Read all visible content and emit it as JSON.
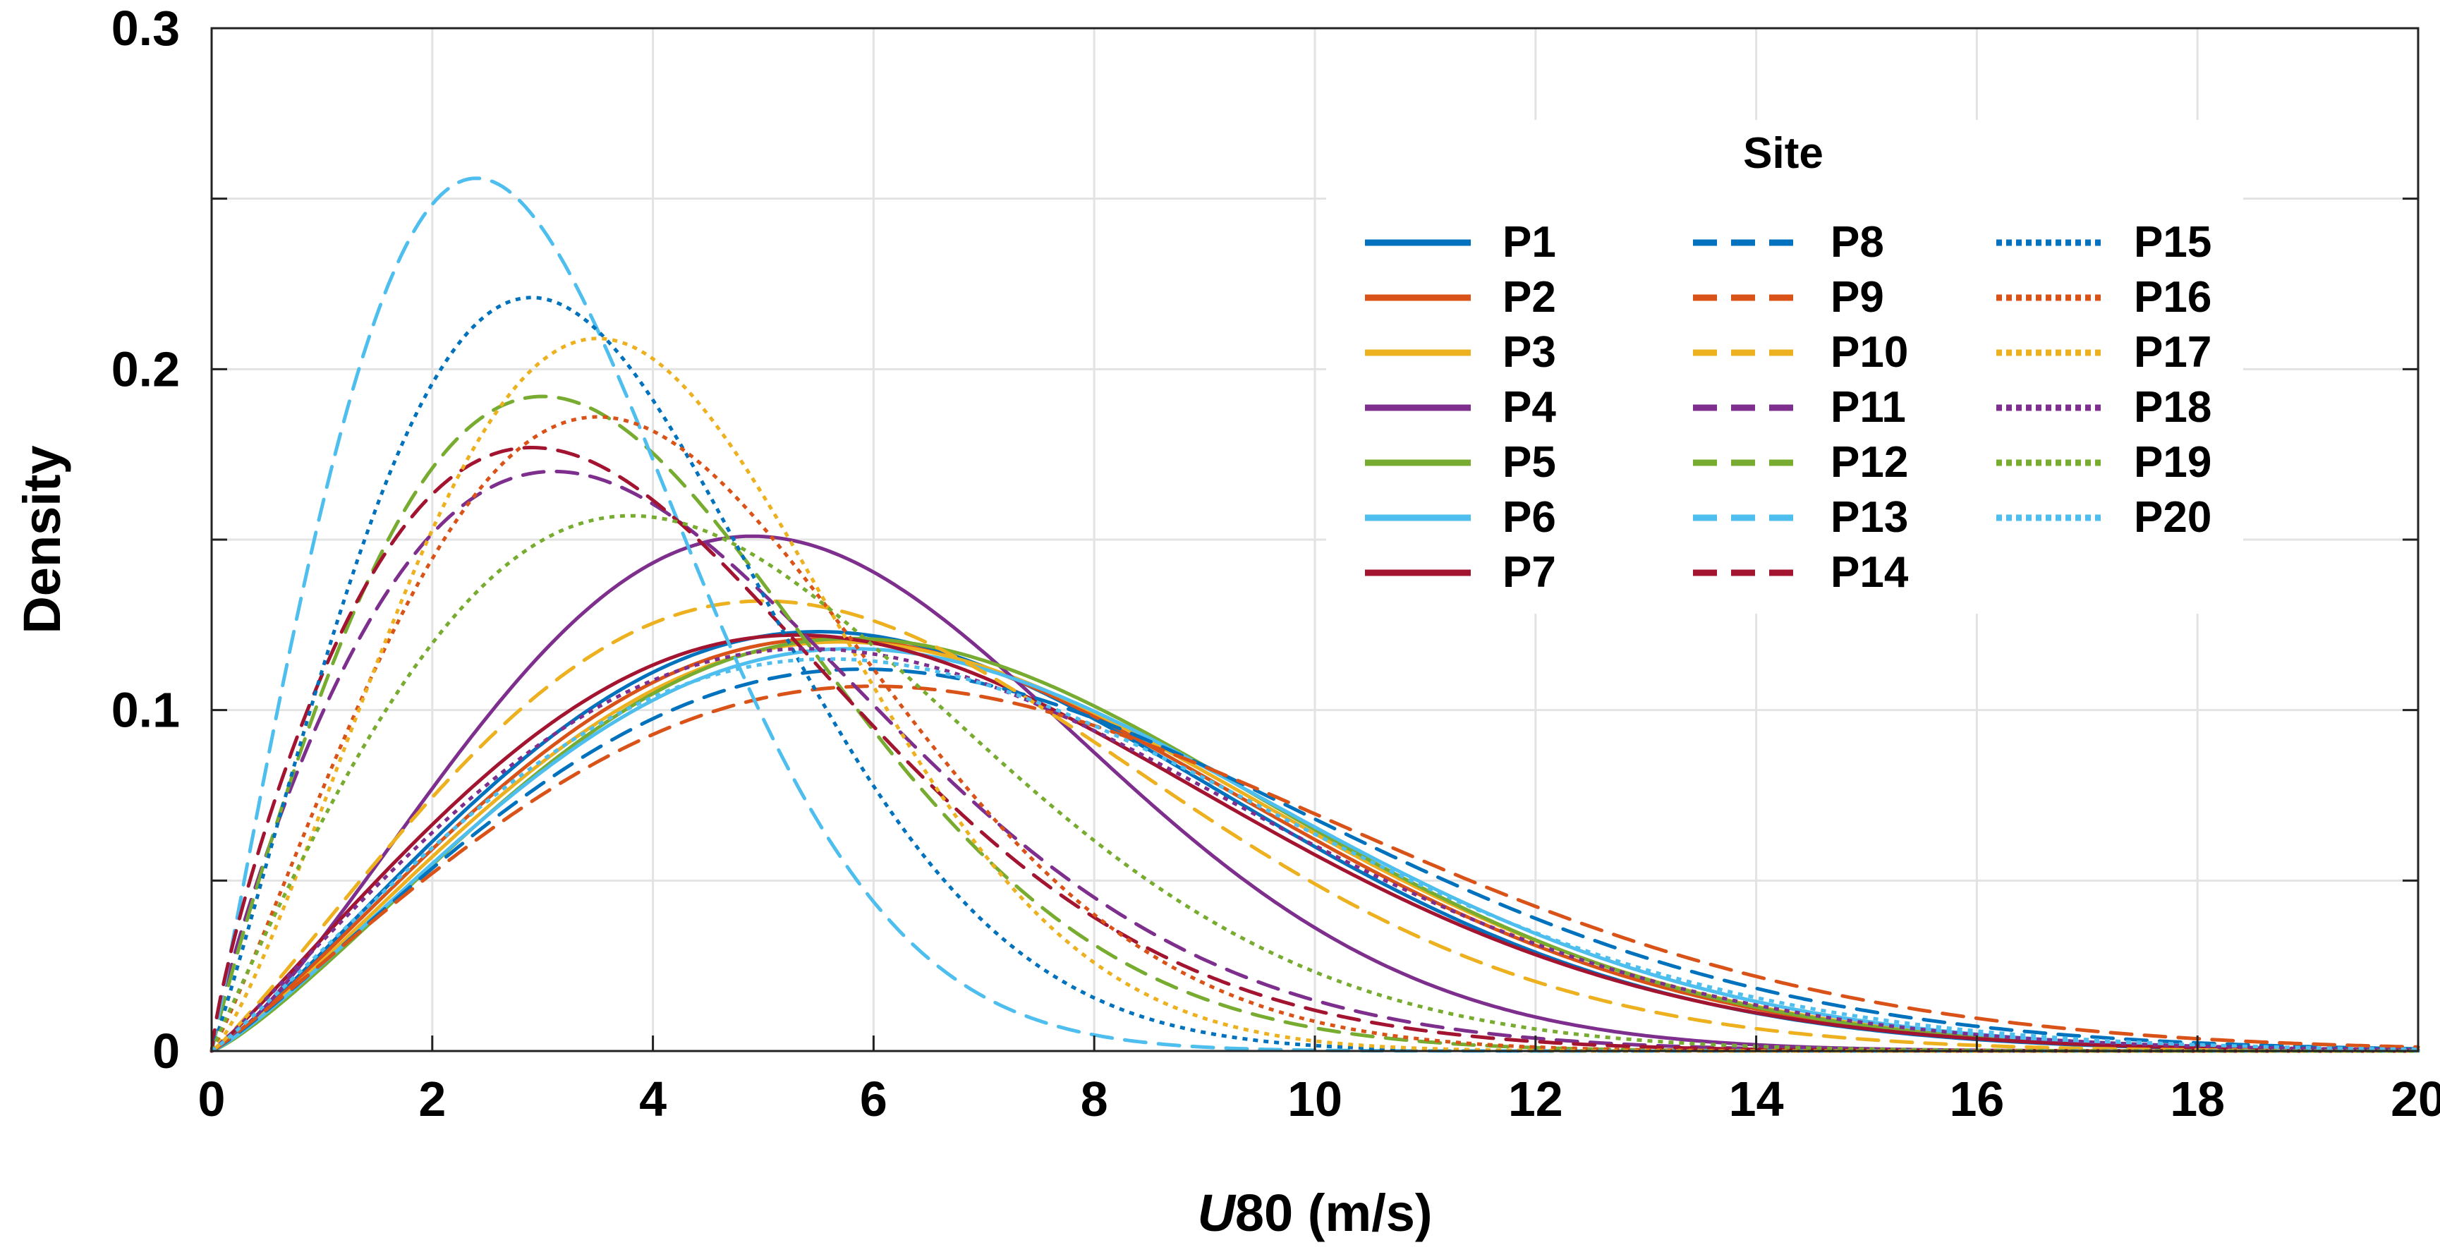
{
  "chart_data": {
    "type": "line",
    "title": "",
    "xlabel_italic": "U",
    "xlabel_rest": "80 (m/s)",
    "ylabel": "Density",
    "xlim": [
      0,
      20
    ],
    "ylim": [
      0,
      0.3
    ],
    "xticks": [
      "0",
      "2",
      "4",
      "6",
      "8",
      "10",
      "12",
      "14",
      "16",
      "18",
      "20"
    ],
    "yticks": [
      "0",
      "0.1",
      "0.2",
      "0.3"
    ],
    "grid": true,
    "legend_title": "Site",
    "legend_position": "top-right",
    "series": [
      {
        "name": "P1",
        "color": "#0072BD",
        "style": "solid",
        "mode": 5.5,
        "peak": 0.123
      },
      {
        "name": "P2",
        "color": "#D95319",
        "style": "solid",
        "mode": 5.6,
        "peak": 0.121
      },
      {
        "name": "P3",
        "color": "#EDB120",
        "style": "solid",
        "mode": 5.7,
        "peak": 0.12
      },
      {
        "name": "P4",
        "color": "#7E2F8E",
        "style": "solid",
        "mode": 4.9,
        "peak": 0.151
      },
      {
        "name": "P5",
        "color": "#77AC30",
        "style": "solid",
        "mode": 5.8,
        "peak": 0.121
      },
      {
        "name": "P6",
        "color": "#4DBEEE",
        "style": "solid",
        "mode": 5.8,
        "peak": 0.118
      },
      {
        "name": "P7",
        "color": "#A2142F",
        "style": "solid",
        "mode": 5.3,
        "peak": 0.122
      },
      {
        "name": "P8",
        "color": "#0072BD",
        "style": "dashed",
        "mode": 5.9,
        "peak": 0.112
      },
      {
        "name": "P9",
        "color": "#D95319",
        "style": "dashed",
        "mode": 6.0,
        "peak": 0.107
      },
      {
        "name": "P10",
        "color": "#EDB120",
        "style": "dashed",
        "mode": 5.0,
        "peak": 0.132
      },
      {
        "name": "P11",
        "color": "#7E2F8E",
        "style": "dashed",
        "mode": 3.1,
        "peak": 0.17
      },
      {
        "name": "P12",
        "color": "#77AC30",
        "style": "dashed",
        "mode": 3.0,
        "peak": 0.192
      },
      {
        "name": "P13",
        "color": "#4DBEEE",
        "style": "dashed",
        "mode": 2.4,
        "peak": 0.256
      },
      {
        "name": "P14",
        "color": "#A2142F",
        "style": "dashed",
        "mode": 2.9,
        "peak": 0.177
      },
      {
        "name": "P15",
        "color": "#0072BD",
        "style": "dotted",
        "mode": 2.9,
        "peak": 0.221
      },
      {
        "name": "P16",
        "color": "#D95319",
        "style": "dotted",
        "mode": 3.5,
        "peak": 0.186
      },
      {
        "name": "P17",
        "color": "#EDB120",
        "style": "dotted",
        "mode": 3.5,
        "peak": 0.209
      },
      {
        "name": "P18",
        "color": "#7E2F8E",
        "style": "dotted",
        "mode": 5.4,
        "peak": 0.118
      },
      {
        "name": "P19",
        "color": "#77AC30",
        "style": "dotted",
        "mode": 3.8,
        "peak": 0.157
      },
      {
        "name": "P20",
        "color": "#4DBEEE",
        "style": "dotted",
        "mode": 5.6,
        "peak": 0.115
      }
    ]
  }
}
